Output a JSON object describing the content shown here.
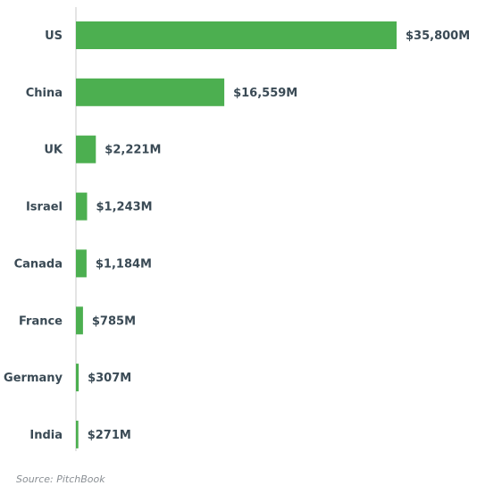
{
  "chart_data": {
    "type": "bar",
    "orientation": "horizontal",
    "categories": [
      "US",
      "China",
      "UK",
      "Israel",
      "Canada",
      "France",
      "Germany",
      "India"
    ],
    "values": [
      35800,
      16559,
      2221,
      1243,
      1184,
      785,
      307,
      271
    ],
    "value_labels": [
      "$35,800M",
      "$16,559M",
      "$2,221M",
      "$1,243M",
      "$1,184M",
      "$785M",
      "$307M",
      "$271M"
    ],
    "xlim": [
      0,
      35800
    ],
    "grid": false,
    "bar_color": "#4caf50",
    "axis_color": "#c8c8c8"
  },
  "footer": {
    "source": "Source: PitchBook"
  }
}
